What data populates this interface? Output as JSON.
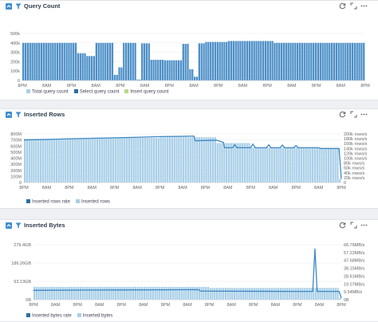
{
  "colors": {
    "bar_blue": "#4d8fc7",
    "bar_light": "#a9cfe8",
    "line_blue": "#3d88c4",
    "legend_green": "#b5d98b",
    "legend_dark": "#2c6fa5"
  },
  "panels": [
    {
      "title": "Query Count",
      "icons": [
        "collapse-icon",
        "filter-icon",
        "refresh-icon",
        "expand-icon",
        "more-icon"
      ],
      "legend": [
        {
          "label": "Total query count",
          "color": "#a9cfe8"
        },
        {
          "label": "Select query count",
          "color": "#2c6fa5"
        },
        {
          "label": "Insert query count",
          "color": "#b5d98b"
        }
      ]
    },
    {
      "title": "Inserted Rows",
      "icons": [
        "collapse-icon",
        "filter-icon",
        "refresh-icon",
        "expand-icon",
        "more-icon"
      ],
      "legend": [
        {
          "label": "Inserted rows rate",
          "color": "#2c6fa5"
        },
        {
          "label": "Inserted rows",
          "color": "#a9cfe8"
        }
      ]
    },
    {
      "title": "Inserted Bytes",
      "icons": [
        "collapse-icon",
        "filter-icon",
        "refresh-icon",
        "expand-icon",
        "more-icon"
      ],
      "legend": [
        {
          "label": "Inserted bytes rate",
          "color": "#2c6fa5"
        },
        {
          "label": "Inserted bytes",
          "color": "#a9cfe8"
        }
      ]
    }
  ],
  "chart_data": [
    {
      "type": "bar",
      "title": "Query Count",
      "x_ticks": [
        "8PM",
        "8AM",
        "8PM",
        "8AM",
        "8PM",
        "8AM",
        "8PM",
        "8AM",
        "8PM",
        "8AM",
        "8PM",
        "8AM",
        "8PM",
        "8AM",
        "8PM"
      ],
      "y_ticks": [
        "0",
        "100k",
        "200k",
        "300k",
        "400k",
        "500k"
      ],
      "ylim": [
        0,
        500000
      ],
      "bar_count": 150,
      "series": [
        {
          "name": "Total query count",
          "segments": [
            {
              "from": 0,
              "to": 24,
              "value": 400000
            },
            {
              "from": 24,
              "to": 28,
              "value": 290000
            },
            {
              "from": 28,
              "to": 32,
              "value": 260000
            },
            {
              "from": 32,
              "to": 40,
              "value": 400000
            },
            {
              "from": 40,
              "to": 42,
              "value": 60000
            },
            {
              "from": 42,
              "to": 44,
              "value": 140000
            },
            {
              "from": 44,
              "to": 50,
              "value": 400000
            },
            {
              "from": 50,
              "to": 52,
              "value": 10000
            },
            {
              "from": 52,
              "to": 56,
              "value": 395000
            },
            {
              "from": 56,
              "to": 62,
              "value": 220000
            },
            {
              "from": 62,
              "to": 70,
              "value": 215000
            },
            {
              "from": 70,
              "to": 73,
              "value": 390000
            },
            {
              "from": 73,
              "to": 75,
              "value": 120000
            },
            {
              "from": 75,
              "to": 77,
              "value": 40000
            },
            {
              "from": 77,
              "to": 80,
              "value": 395000
            },
            {
              "from": 80,
              "to": 90,
              "value": 410000
            },
            {
              "from": 90,
              "to": 110,
              "value": 420000
            },
            {
              "from": 110,
              "to": 150,
              "value": 400000
            }
          ]
        }
      ]
    },
    {
      "type": "bar",
      "title": "Inserted Rows",
      "x_ticks": [
        "8PM",
        "8AM",
        "8PM",
        "8AM",
        "8PM",
        "8AM",
        "8PM",
        "8AM",
        "8PM",
        "8AM",
        "8PM",
        "8AM",
        "8PM",
        "8AM",
        "8PM"
      ],
      "y_ticks_left": [
        "0",
        "100M",
        "200M",
        "300M",
        "400M",
        "500M",
        "600M",
        "700M",
        "800M"
      ],
      "y_ticks_right": [
        "0",
        "20k rows/s",
        "40k rows/s",
        "60k rows/s",
        "80k rows/s",
        "100k rows/s",
        "120k rows/s",
        "140k rows/s",
        "160k rows/s",
        "180k rows/s",
        "200k rows/s"
      ],
      "ylim_left": [
        0,
        800000000
      ],
      "ylim_right": [
        0,
        200000
      ],
      "bar_count": 140,
      "series": [
        {
          "name": "Inserted rows",
          "segments": [
            {
              "from": 0,
              "to": 30,
              "value": 720000000
            },
            {
              "from": 30,
              "to": 60,
              "value": 735000000
            },
            {
              "from": 60,
              "to": 85,
              "value": 745000000
            },
            {
              "from": 85,
              "to": 100,
              "value": 650000000
            },
            {
              "from": 100,
              "to": 130,
              "value": 575000000
            },
            {
              "from": 130,
              "to": 139,
              "value": 560000000
            },
            {
              "from": 139,
              "to": 140,
              "value": 60000000
            }
          ]
        },
        {
          "name": "Inserted rows rate",
          "points": [
            [
              0,
              175000
            ],
            [
              10,
              177000
            ],
            [
              20,
              180000
            ],
            [
              30,
              182000
            ],
            [
              40,
              184000
            ],
            [
              50,
              186000
            ],
            [
              60,
              189000
            ],
            [
              70,
              190000
            ],
            [
              75,
              191000
            ],
            [
              75.5,
              172000
            ],
            [
              85,
              174000
            ],
            [
              88,
              165000
            ],
            [
              88.5,
              143000
            ],
            [
              92,
              143000
            ],
            [
              93,
              155000
            ],
            [
              94,
              143000
            ],
            [
              100,
              143000
            ],
            [
              101,
              158000
            ],
            [
              102,
              143000
            ],
            [
              107,
              143000
            ],
            [
              108,
              155000
            ],
            [
              109,
              143000
            ],
            [
              113,
              143000
            ],
            [
              114,
              154000
            ],
            [
              115,
              143000
            ],
            [
              119,
              143000
            ],
            [
              120,
              152000
            ],
            [
              121,
              143000
            ],
            [
              130,
              143000
            ],
            [
              131,
              140000
            ],
            [
              139,
              140000
            ],
            [
              140,
              15000
            ]
          ]
        }
      ]
    },
    {
      "type": "bar",
      "title": "Inserted Bytes",
      "x_ticks": [
        "8PM",
        "8AM",
        "8PM",
        "8AM",
        "8PM",
        "8AM",
        "8PM",
        "8AM",
        "8PM",
        "8AM",
        "8PM",
        "8AM",
        "8PM",
        "8AM",
        "8PM"
      ],
      "y_ticks_left": [
        "0B",
        "93.13GB",
        "186.26GB",
        "279.4GB"
      ],
      "y_ticks_right": [
        "0B",
        "9.54MB/s",
        "19.07MB/s",
        "28.61MB/s",
        "38.15MB/s",
        "47.68MB/s",
        "57.22MB/s",
        "66.76MB/s"
      ],
      "ylim_left": [
        0,
        279.4
      ],
      "ylim_right": [
        0,
        66.76
      ],
      "bar_count": 140,
      "series": [
        {
          "name": "Inserted bytes",
          "segments": [
            {
              "from": 0,
              "to": 80,
              "value": 65
            },
            {
              "from": 80,
              "to": 139,
              "value": 60
            },
            {
              "from": 139,
              "to": 140,
              "value": 10
            }
          ]
        },
        {
          "name": "Inserted bytes rate",
          "points": [
            [
              0,
              11.3
            ],
            [
              20,
              11.6
            ],
            [
              40,
              11.8
            ],
            [
              60,
              12.0
            ],
            [
              75,
              12.2
            ],
            [
              76,
              10.4
            ],
            [
              90,
              10.3
            ],
            [
              100,
              10.2
            ],
            [
              110,
              10.1
            ],
            [
              118,
              10.0
            ],
            [
              120,
              10.0
            ],
            [
              127,
              10.0
            ],
            [
              128,
              62.0
            ],
            [
              129,
              10.0
            ],
            [
              135,
              10.0
            ],
            [
              139,
              10.0
            ],
            [
              140,
              2.0
            ]
          ]
        }
      ]
    }
  ]
}
